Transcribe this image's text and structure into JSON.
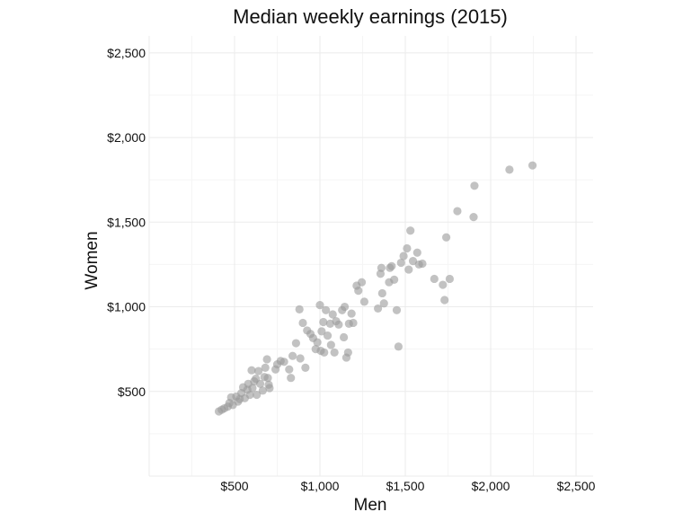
{
  "chart_data": {
    "type": "scatter",
    "title": "Median weekly earnings (2015)",
    "xlabel": "Men",
    "ylabel": "Women",
    "xlim": [
      0,
      2600
    ],
    "ylim": [
      0,
      2600
    ],
    "x_ticks": [
      500,
      1000,
      1500,
      2000,
      2500
    ],
    "x_tick_labels": [
      "$500",
      "$1,000",
      "$1,500",
      "$2,000",
      "$2,500"
    ],
    "y_ticks": [
      500,
      1000,
      1500,
      2000,
      2500
    ],
    "y_tick_labels": [
      "$500",
      "$1,000",
      "$1,500",
      "$2,000",
      "$2,500"
    ],
    "grid": true,
    "point_color": "#9a9a9a",
    "points": [
      [
        408,
        382
      ],
      [
        425,
        392
      ],
      [
        440,
        400
      ],
      [
        460,
        410
      ],
      [
        470,
        432
      ],
      [
        480,
        465
      ],
      [
        490,
        420
      ],
      [
        510,
        470
      ],
      [
        520,
        440
      ],
      [
        530,
        455
      ],
      [
        540,
        490
      ],
      [
        550,
        525
      ],
      [
        560,
        460
      ],
      [
        575,
        510
      ],
      [
        580,
        545
      ],
      [
        590,
        480
      ],
      [
        600,
        625
      ],
      [
        605,
        520
      ],
      [
        615,
        560
      ],
      [
        625,
        575
      ],
      [
        630,
        480
      ],
      [
        640,
        620
      ],
      [
        650,
        545
      ],
      [
        665,
        505
      ],
      [
        675,
        585
      ],
      [
        680,
        640
      ],
      [
        690,
        690
      ],
      [
        695,
        580
      ],
      [
        700,
        540
      ],
      [
        705,
        520
      ],
      [
        740,
        630
      ],
      [
        750,
        660
      ],
      [
        770,
        680
      ],
      [
        790,
        675
      ],
      [
        820,
        630
      ],
      [
        830,
        580
      ],
      [
        840,
        710
      ],
      [
        860,
        785
      ],
      [
        880,
        985
      ],
      [
        885,
        695
      ],
      [
        900,
        905
      ],
      [
        915,
        640
      ],
      [
        925,
        860
      ],
      [
        945,
        840
      ],
      [
        960,
        815
      ],
      [
        975,
        750
      ],
      [
        985,
        790
      ],
      [
        1000,
        1010
      ],
      [
        1005,
        740
      ],
      [
        1010,
        855
      ],
      [
        1020,
        910
      ],
      [
        1025,
        730
      ],
      [
        1035,
        980
      ],
      [
        1045,
        830
      ],
      [
        1060,
        900
      ],
      [
        1065,
        775
      ],
      [
        1075,
        955
      ],
      [
        1085,
        730
      ],
      [
        1095,
        915
      ],
      [
        1110,
        895
      ],
      [
        1130,
        980
      ],
      [
        1140,
        820
      ],
      [
        1145,
        1000
      ],
      [
        1155,
        700
      ],
      [
        1165,
        730
      ],
      [
        1170,
        900
      ],
      [
        1185,
        960
      ],
      [
        1195,
        905
      ],
      [
        1215,
        1125
      ],
      [
        1225,
        1095
      ],
      [
        1245,
        1145
      ],
      [
        1260,
        1030
      ],
      [
        1340,
        990
      ],
      [
        1355,
        1195
      ],
      [
        1360,
        1230
      ],
      [
        1365,
        1080
      ],
      [
        1375,
        1020
      ],
      [
        1405,
        1145
      ],
      [
        1410,
        1230
      ],
      [
        1420,
        1240
      ],
      [
        1435,
        1160
      ],
      [
        1450,
        980
      ],
      [
        1460,
        765
      ],
      [
        1475,
        1260
      ],
      [
        1490,
        1300
      ],
      [
        1510,
        1345
      ],
      [
        1520,
        1220
      ],
      [
        1530,
        1450
      ],
      [
        1545,
        1270
      ],
      [
        1570,
        1320
      ],
      [
        1580,
        1250
      ],
      [
        1600,
        1255
      ],
      [
        1670,
        1165
      ],
      [
        1720,
        1130
      ],
      [
        1730,
        1040
      ],
      [
        1740,
        1410
      ],
      [
        1760,
        1165
      ],
      [
        1805,
        1565
      ],
      [
        1900,
        1530
      ],
      [
        1905,
        1715
      ],
      [
        2110,
        1810
      ],
      [
        2245,
        1835
      ]
    ]
  }
}
